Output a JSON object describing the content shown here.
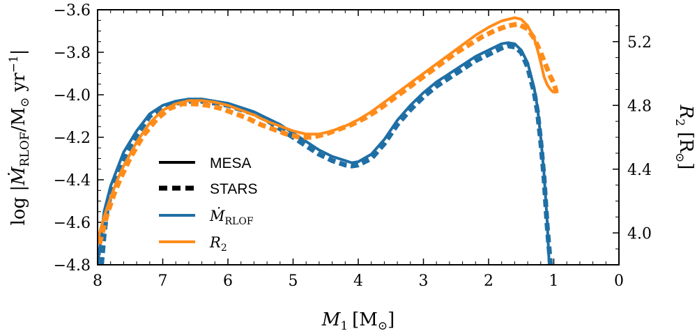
{
  "chart_data": {
    "type": "line",
    "x_label": {
      "var": "M",
      "sub": "1",
      "unit": "[M",
      "unit_sub": "⊙",
      "unit_end": "]"
    },
    "y_label_left": {
      "prefix": "log |",
      "var": "Ṁ",
      "sub": "RLOF",
      "unit": "/M",
      "unit_sub": "⊙",
      "unit_mid": " yr",
      "unit_sup": "−1",
      "suffix": "|"
    },
    "y_label_right": {
      "var": "R",
      "sub": "2",
      "unit": " [R",
      "unit_sub": "⊙",
      "unit_end": "]"
    },
    "xlim": [
      8,
      0
    ],
    "ylim_left": [
      -4.8,
      -3.6
    ],
    "ylim_right": [
      3.8,
      5.4
    ],
    "x_ticks": [
      "8",
      "7",
      "6",
      "5",
      "4",
      "3",
      "2",
      "1",
      "0"
    ],
    "y_ticks_left": [
      "−3.6",
      "−3.8",
      "−4.0",
      "−4.2",
      "−4.4",
      "−4.6",
      "−4.8"
    ],
    "y_ticks_right": [
      "5.2",
      "4.8",
      "4.4",
      "4.0"
    ],
    "colors": {
      "mdot": "#1f6fa5",
      "r2": "#ff8c1a"
    },
    "legend": [
      {
        "label": "MESA",
        "style": "solid",
        "color": "#000000"
      },
      {
        "label": "STARS",
        "style": "dashed",
        "color": "#000000"
      },
      {
        "label": "Ṁ",
        "sub": "RLOF",
        "style": "solid",
        "color": "#1f6fa5"
      },
      {
        "label": "R",
        "sub": "2",
        "style": "solid",
        "color": "#ff8c1a"
      }
    ],
    "series": [
      {
        "name": "MESA Ṁ_RLOF",
        "axis": "left",
        "style": "solid",
        "color": "#1f6fa5",
        "x": [
          8.0,
          7.95,
          7.9,
          7.8,
          7.7,
          7.6,
          7.4,
          7.2,
          7.0,
          6.8,
          6.6,
          6.4,
          6.2,
          6.0,
          5.8,
          5.6,
          5.4,
          5.2,
          5.0,
          4.8,
          4.6,
          4.4,
          4.2,
          4.1,
          4.0,
          3.8,
          3.6,
          3.4,
          3.2,
          3.0,
          2.8,
          2.6,
          2.4,
          2.2,
          2.0,
          1.8,
          1.7,
          1.6,
          1.5,
          1.4,
          1.3,
          1.25,
          1.2,
          1.15,
          1.1,
          1.07
        ],
        "y": [
          -4.8,
          -4.68,
          -4.55,
          -4.43,
          -4.35,
          -4.27,
          -4.17,
          -4.09,
          -4.05,
          -4.03,
          -4.02,
          -4.02,
          -4.03,
          -4.04,
          -4.06,
          -4.08,
          -4.11,
          -4.14,
          -4.18,
          -4.22,
          -4.26,
          -4.29,
          -4.31,
          -4.32,
          -4.315,
          -4.28,
          -4.21,
          -4.12,
          -4.05,
          -3.99,
          -3.94,
          -3.9,
          -3.86,
          -3.82,
          -3.79,
          -3.76,
          -3.755,
          -3.76,
          -3.79,
          -3.85,
          -3.97,
          -4.06,
          -4.2,
          -4.37,
          -4.6,
          -4.8
        ]
      },
      {
        "name": "STARS Ṁ_RLOF",
        "axis": "left",
        "style": "dashed",
        "color": "#1f6fa5",
        "x": [
          7.94,
          7.9,
          7.85,
          7.75,
          7.65,
          7.55,
          7.4,
          7.2,
          7.0,
          6.8,
          6.6,
          6.4,
          6.2,
          6.0,
          5.8,
          5.6,
          5.4,
          5.2,
          5.0,
          4.8,
          4.6,
          4.4,
          4.2,
          4.1,
          4.0,
          3.8,
          3.6,
          3.4,
          3.2,
          3.0,
          2.8,
          2.6,
          2.4,
          2.2,
          2.0,
          1.8,
          1.7,
          1.6,
          1.5,
          1.4,
          1.3,
          1.25,
          1.2,
          1.15,
          1.1,
          1.05
        ],
        "y": [
          -4.8,
          -4.66,
          -4.53,
          -4.42,
          -4.34,
          -4.27,
          -4.19,
          -4.1,
          -4.06,
          -4.04,
          -4.03,
          -4.03,
          -4.04,
          -4.05,
          -4.07,
          -4.09,
          -4.12,
          -4.16,
          -4.2,
          -4.24,
          -4.28,
          -4.31,
          -4.33,
          -4.335,
          -4.33,
          -4.3,
          -4.23,
          -4.14,
          -4.07,
          -4.01,
          -3.96,
          -3.92,
          -3.88,
          -3.84,
          -3.81,
          -3.78,
          -3.77,
          -3.775,
          -3.8,
          -3.87,
          -3.99,
          -4.08,
          -4.22,
          -4.39,
          -4.62,
          -4.8
        ]
      },
      {
        "name": "MESA R_2",
        "axis": "right",
        "style": "solid",
        "color": "#ff8c1a",
        "x": [
          8.0,
          7.95,
          7.9,
          7.8,
          7.7,
          7.6,
          7.4,
          7.2,
          7.0,
          6.8,
          6.6,
          6.4,
          6.2,
          6.0,
          5.8,
          5.6,
          5.4,
          5.2,
          5.0,
          4.8,
          4.6,
          4.4,
          4.2,
          4.0,
          3.8,
          3.6,
          3.4,
          3.2,
          3.0,
          2.8,
          2.6,
          2.4,
          2.2,
          2.0,
          1.8,
          1.6,
          1.5,
          1.4,
          1.3,
          1.25,
          1.2,
          1.15,
          1.1,
          1.05,
          1.0
        ],
        "y": [
          3.95,
          4.03,
          4.1,
          4.22,
          4.33,
          4.42,
          4.57,
          4.69,
          4.77,
          4.81,
          4.83,
          4.83,
          4.82,
          4.8,
          4.77,
          4.74,
          4.7,
          4.67,
          4.64,
          4.62,
          4.62,
          4.64,
          4.67,
          4.71,
          4.76,
          4.82,
          4.88,
          4.94,
          5.0,
          5.06,
          5.12,
          5.18,
          5.24,
          5.29,
          5.33,
          5.35,
          5.34,
          5.3,
          5.22,
          5.15,
          5.07,
          4.98,
          4.93,
          4.9,
          4.88
        ]
      },
      {
        "name": "STARS R_2",
        "axis": "right",
        "style": "dashed",
        "color": "#ff8c1a",
        "x": [
          7.97,
          7.92,
          7.85,
          7.75,
          7.65,
          7.5,
          7.3,
          7.1,
          6.9,
          6.7,
          6.5,
          6.3,
          6.1,
          5.9,
          5.7,
          5.5,
          5.3,
          5.1,
          4.9,
          4.7,
          4.5,
          4.3,
          4.1,
          3.9,
          3.7,
          3.5,
          3.3,
          3.1,
          2.9,
          2.7,
          2.5,
          2.3,
          2.1,
          1.9,
          1.7,
          1.55,
          1.4,
          1.3,
          1.2,
          1.1,
          1.05,
          1.0,
          0.97,
          0.95
        ],
        "y": [
          3.93,
          4.01,
          4.12,
          4.24,
          4.34,
          4.47,
          4.61,
          4.71,
          4.78,
          4.81,
          4.81,
          4.8,
          4.78,
          4.75,
          4.72,
          4.68,
          4.65,
          4.62,
          4.6,
          4.6,
          4.62,
          4.65,
          4.68,
          4.72,
          4.77,
          4.83,
          4.89,
          4.95,
          5.01,
          5.07,
          5.13,
          5.18,
          5.23,
          5.27,
          5.3,
          5.31,
          5.28,
          5.22,
          5.13,
          5.03,
          4.98,
          4.94,
          4.9,
          4.85
        ]
      }
    ]
  }
}
